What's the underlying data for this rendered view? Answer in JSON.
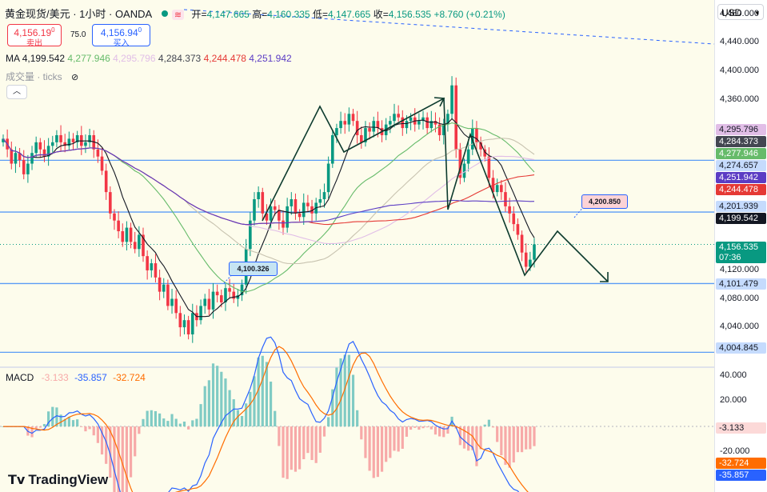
{
  "header": {
    "symbol_title": "黄金现货/美元 · 1小时 · OANDA",
    "open_label": "开=",
    "open_value": "4,147.665",
    "high_label": "高=",
    "high_value": "4,160.335",
    "low_label": "低=",
    "low_value": "4,147.665",
    "close_label": "收=",
    "close_value": "4,156.535",
    "change_value": "+8.760 (+0.21%)"
  },
  "trade": {
    "sell_price": "4,156.19",
    "sell_price_sup": "0",
    "sell_label": "卖出",
    "spread": "75.0",
    "buy_price": "4,156.94",
    "buy_price_sup": "0",
    "buy_label": "买入"
  },
  "ma_legend": {
    "label": "MA",
    "values": [
      {
        "value": "4,199.542",
        "color": "#131722"
      },
      {
        "value": "4,277.946",
        "color": "#66bb6a"
      },
      {
        "value": "4,295.796",
        "color": "#e1bee7"
      },
      {
        "value": "4,284.373",
        "color": "#434651"
      },
      {
        "value": "4,244.478",
        "color": "#e53935"
      },
      {
        "value": "4,251.942",
        "color": "#5b3cc4"
      }
    ]
  },
  "volume_legend": {
    "label": "成交量 · ticks"
  },
  "macd_legend": {
    "label": "MACD",
    "hist": {
      "value": "-3.133",
      "color": "#f7a9a8"
    },
    "macd": {
      "value": "-35.857",
      "color": "#2962ff"
    },
    "signal": {
      "value": "-32.724",
      "color": "#ff6d00"
    }
  },
  "currency": "USD",
  "price_axis_ticks": [
    "4,480.000",
    "4,440.000",
    "4,400.000",
    "4,360.000",
    "4,120.000",
    "4,080.000",
    "4,040.000"
  ],
  "axis_tags": [
    {
      "text": "4,295.796",
      "bg": "#e1bee7",
      "fg": "#131722"
    },
    {
      "text": "4,284.373",
      "bg": "#434651",
      "fg": "#ffffff"
    },
    {
      "text": "4,277.946",
      "bg": "#66bb6a",
      "fg": "#ffffff"
    },
    {
      "text": "4,274.657",
      "bg": "#c5dbfd",
      "fg": "#131722"
    },
    {
      "text": "4,251.942",
      "bg": "#5b3cc4",
      "fg": "#ffffff"
    },
    {
      "text": "4,244.478",
      "bg": "#e53935",
      "fg": "#ffffff"
    },
    {
      "text": "4,201.939",
      "bg": "#c5dbfd",
      "fg": "#131722"
    },
    {
      "text": "4,199.542",
      "bg": "#131722",
      "fg": "#ffffff"
    },
    {
      "text": "4,101.479",
      "bg": "#c5dbfd",
      "fg": "#131722"
    },
    {
      "text": "4,004.845",
      "bg": "#c5dbfd",
      "fg": "#131722"
    }
  ],
  "last_price_tag": {
    "price": "4,156.535",
    "countdown": "07:36",
    "bg": "#089981"
  },
  "macd_axis_ticks": [
    "40.000",
    "20.000",
    "-20.000"
  ],
  "macd_axis_tags": [
    {
      "text": "-3.133",
      "bg": "#fcd9d8",
      "fg": "#131722"
    },
    {
      "text": "-32.724",
      "bg": "#ff6d00",
      "fg": "#ffffff"
    },
    {
      "text": "-35.857",
      "bg": "#2962ff",
      "fg": "#ffffff"
    }
  ],
  "annotations": {
    "callout_low": "4,100.326",
    "callout_mid": "4,200.850"
  },
  "branding": {
    "logo_text": "TradingView"
  },
  "colors": {
    "up": "#089981",
    "down": "#f23645",
    "hline": "#5b9cf6",
    "pane_bg": "#fdfcec"
  },
  "chart_data": {
    "type": "candlestick",
    "title": "黄金现货/美元 · 1小时 · OANDA",
    "ylim": [
      3985,
      4500
    ],
    "closes": [
      4305,
      4290,
      4270,
      4285,
      4275,
      4255,
      4270,
      4285,
      4300,
      4290,
      4280,
      4295,
      4300,
      4310,
      4300,
      4295,
      4305,
      4300,
      4310,
      4295,
      4300,
      4310,
      4290,
      4280,
      4260,
      4230,
      4200,
      4190,
      4175,
      4160,
      4180,
      4160,
      4150,
      4170,
      4140,
      4120,
      4130,
      4110,
      4090,
      4100,
      4070,
      4080,
      4060,
      4040,
      4050,
      4030,
      4060,
      4050,
      4070,
      4080,
      4065,
      4090,
      4085,
      4075,
      4095,
      4090,
      4080,
      4085,
      4100,
      4150,
      4190,
      4220,
      4230,
      4200,
      4190,
      4210,
      4205,
      4190,
      4180,
      4210,
      4220,
      4200,
      4195,
      4215,
      4210,
      4200,
      4215,
      4220,
      4230,
      4270,
      4310,
      4320,
      4330,
      4325,
      4340,
      4330,
      4310,
      4300,
      4320,
      4315,
      4330,
      4320,
      4310,
      4325,
      4330,
      4340,
      4335,
      4320,
      4330,
      4335,
      4325,
      4330,
      4335,
      4320,
      4330,
      4325,
      4310,
      4325,
      4340,
      4380,
      4290,
      4250,
      4270,
      4290,
      4320,
      4300,
      4290,
      4280,
      4250,
      4230,
      4240,
      4230,
      4210,
      4200,
      4185,
      4170,
      4145,
      4125,
      4135,
      4156.535
    ],
    "ma_series": [
      {
        "name": "MA",
        "last": 4199.542,
        "color": "#131722"
      },
      {
        "name": "MA",
        "last": 4277.946,
        "color": "#66bb6a"
      },
      {
        "name": "MA",
        "last": 4295.796,
        "color": "#e1bee7"
      },
      {
        "name": "MA",
        "last": 4284.373,
        "color": "#434651"
      },
      {
        "name": "MA",
        "last": 4244.478,
        "color": "#e53935"
      },
      {
        "name": "MA",
        "last": 4251.942,
        "color": "#5b3cc4"
      }
    ],
    "horizontal_levels": [
      4274.657,
      4201.939,
      4101.479,
      4004.845
    ],
    "open": 4147.665,
    "high": 4160.335,
    "low": 4147.665,
    "close": 4156.535,
    "macd": {
      "ylim": [
        -50,
        45
      ],
      "hist_last": -3.133,
      "macd_last": -35.857,
      "signal_last": -32.724
    }
  }
}
